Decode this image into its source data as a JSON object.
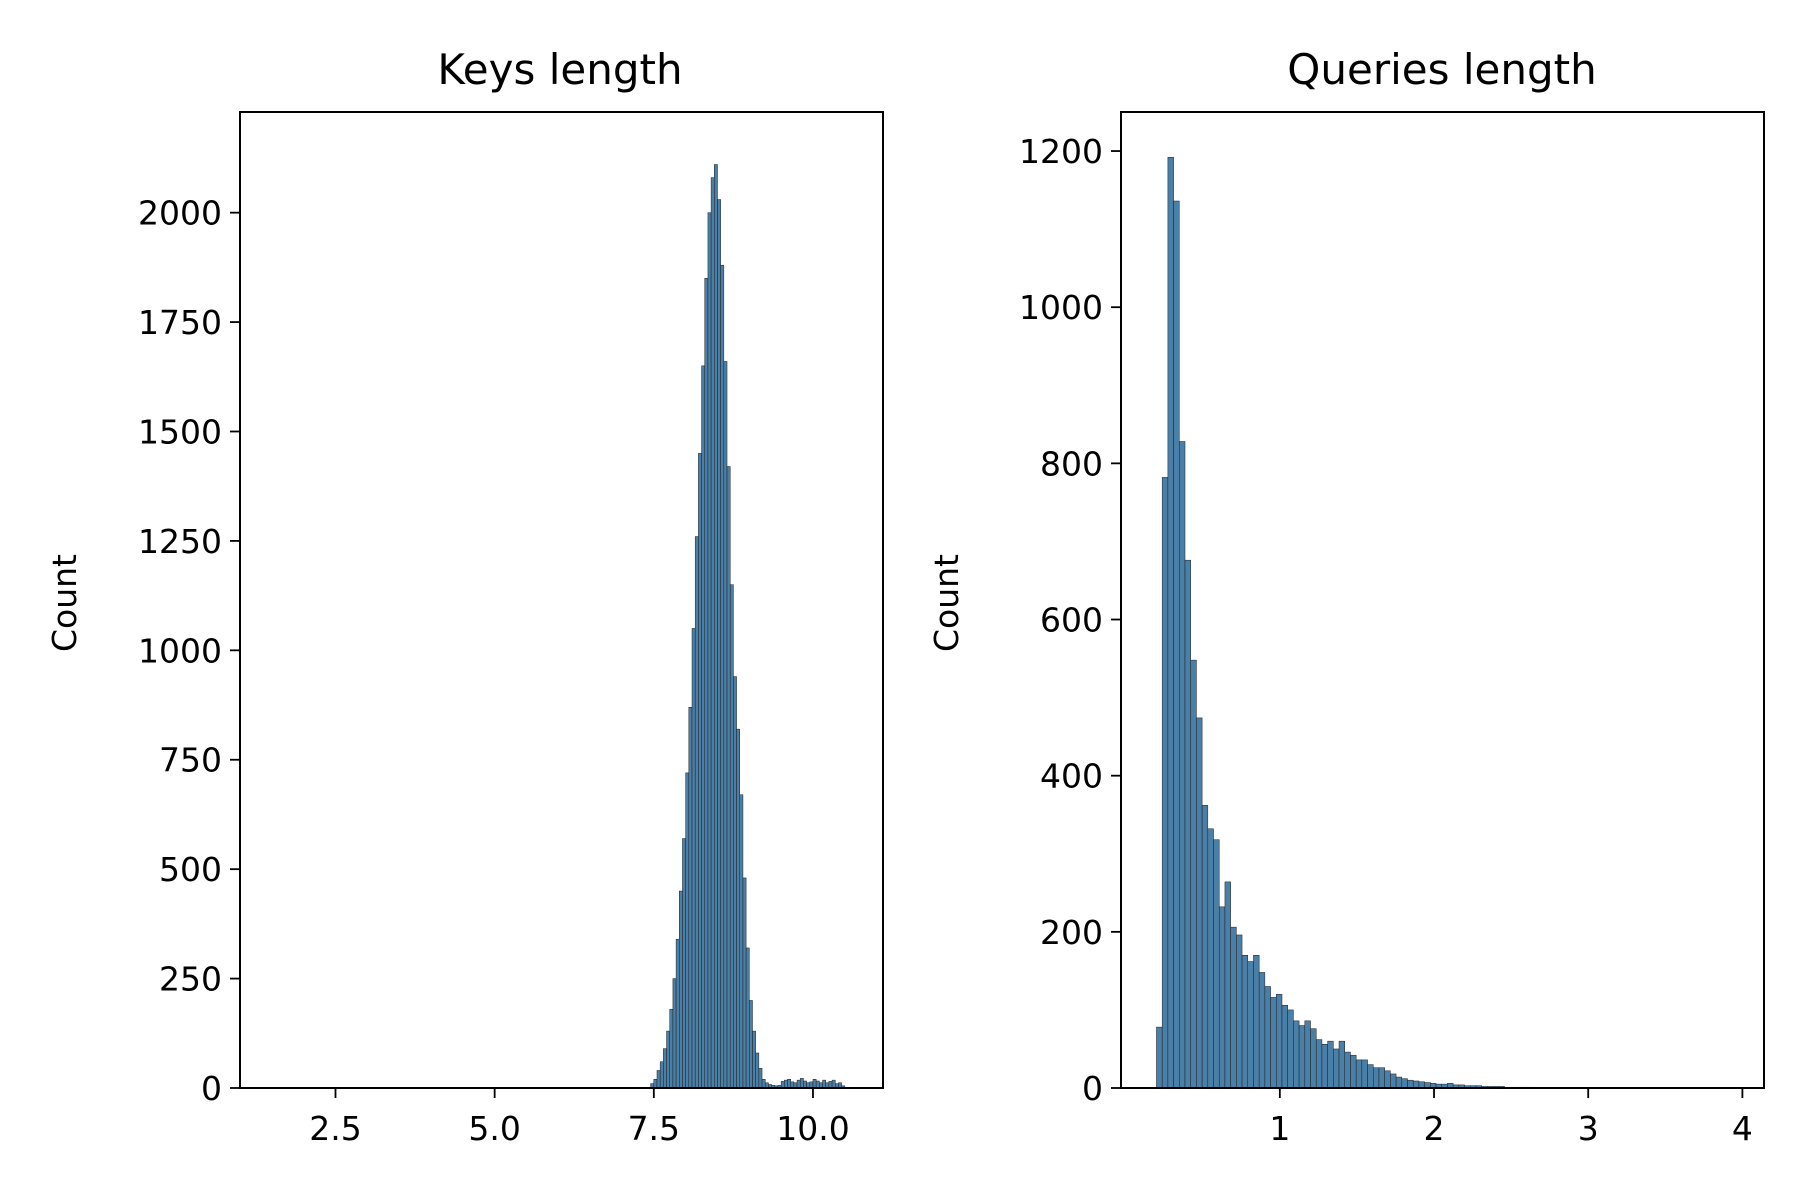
{
  "chart_data": [
    {
      "type": "bar",
      "title": "Keys length",
      "ylabel": "Count",
      "xlabel": "",
      "bar_color": "#4a7fa7",
      "xlim": [
        1.0,
        11.1
      ],
      "ylim": [
        0,
        2230
      ],
      "xticks": [
        2.5,
        5.0,
        7.5,
        10.0
      ],
      "xtick_labels": [
        "2.5",
        "5.0",
        "7.5",
        "10.0"
      ],
      "yticks": [
        0,
        250,
        500,
        750,
        1000,
        1250,
        1500,
        1750,
        2000
      ],
      "ytick_labels": [
        "0",
        "250",
        "500",
        "750",
        "1000",
        "1250",
        "1500",
        "1750",
        "2000"
      ],
      "bin_width": 0.05,
      "bins_x": [
        7.45,
        7.5,
        7.55,
        7.6,
        7.65,
        7.7,
        7.75,
        7.8,
        7.85,
        7.9,
        7.95,
        8.0,
        8.05,
        8.1,
        8.15,
        8.2,
        8.25,
        8.3,
        8.35,
        8.4,
        8.45,
        8.5,
        8.55,
        8.6,
        8.65,
        8.7,
        8.75,
        8.8,
        8.85,
        8.9,
        8.95,
        9.0,
        9.05,
        9.1,
        9.15,
        9.2,
        9.25,
        9.3,
        9.35,
        9.4,
        9.45,
        9.5,
        9.55,
        9.6,
        9.65,
        9.7,
        9.75,
        9.8,
        9.85,
        9.9,
        9.95,
        10.0,
        10.05,
        10.1,
        10.15,
        10.2,
        10.25,
        10.3,
        10.35,
        10.4,
        10.45
      ],
      "values": [
        10,
        20,
        40,
        60,
        90,
        130,
        180,
        250,
        340,
        450,
        570,
        720,
        870,
        1050,
        1260,
        1450,
        1650,
        1850,
        2000,
        2080,
        2110,
        2030,
        1880,
        1660,
        1420,
        1150,
        940,
        820,
        670,
        480,
        320,
        200,
        130,
        80,
        45,
        20,
        12,
        8,
        6,
        5,
        6,
        15,
        18,
        20,
        14,
        12,
        18,
        22,
        16,
        12,
        14,
        20,
        16,
        12,
        18,
        12,
        15,
        18,
        10,
        12,
        5
      ]
    },
    {
      "type": "bar",
      "title": "Queries length",
      "ylabel": "Count",
      "xlabel": "",
      "bar_color": "#4a7fa7",
      "xlim": [
        -0.03,
        4.14
      ],
      "ylim": [
        0,
        1250
      ],
      "xticks": [
        1,
        2,
        3,
        4
      ],
      "xtick_labels": [
        "1",
        "2",
        "3",
        "4"
      ],
      "yticks": [
        0,
        200,
        400,
        600,
        800,
        1000,
        1200
      ],
      "ytick_labels": [
        "0",
        "200",
        "400",
        "600",
        "800",
        "1000",
        "1200"
      ],
      "bin_width": 0.037,
      "bins_x": [
        0.2,
        0.237,
        0.274,
        0.311,
        0.348,
        0.385,
        0.422,
        0.459,
        0.496,
        0.533,
        0.57,
        0.607,
        0.644,
        0.681,
        0.718,
        0.755,
        0.792,
        0.829,
        0.866,
        0.903,
        0.94,
        0.977,
        1.014,
        1.051,
        1.088,
        1.125,
        1.162,
        1.199,
        1.236,
        1.273,
        1.31,
        1.347,
        1.384,
        1.421,
        1.458,
        1.495,
        1.532,
        1.569,
        1.606,
        1.643,
        1.68,
        1.717,
        1.754,
        1.791,
        1.828,
        1.865,
        1.902,
        1.939,
        1.976,
        2.013,
        2.05,
        2.087,
        2.124,
        2.161,
        2.198,
        2.235,
        2.272,
        2.309,
        2.346,
        2.383,
        2.42,
        2.457,
        2.494,
        2.531,
        2.568,
        2.605
      ],
      "values": [
        78,
        782,
        1192,
        1136,
        828,
        676,
        548,
        474,
        362,
        332,
        318,
        232,
        264,
        206,
        196,
        170,
        162,
        170,
        148,
        130,
        116,
        120,
        106,
        100,
        86,
        80,
        86,
        76,
        62,
        56,
        60,
        50,
        60,
        46,
        42,
        36,
        36,
        30,
        26,
        26,
        22,
        18,
        14,
        12,
        10,
        9,
        8,
        7,
        6,
        5,
        5,
        6,
        4,
        4,
        3,
        3,
        3,
        2,
        2,
        2,
        2,
        1,
        1,
        1,
        1,
        1
      ]
    }
  ]
}
